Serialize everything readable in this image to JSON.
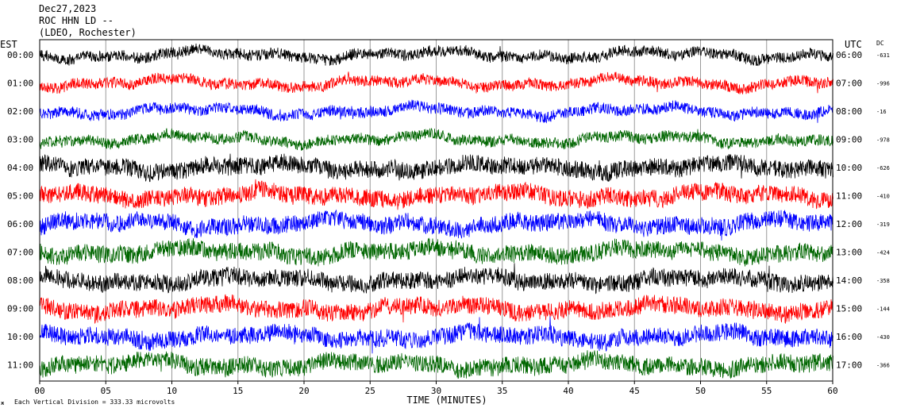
{
  "header": {
    "date": "Dec27,2023",
    "station": "ROC HHN LD --",
    "network": "(LDEO, Rochester)"
  },
  "left_zone_label": "EST",
  "right_zone_label": "UTC",
  "dc_label": "DC",
  "footer_note": "Each Vertical Division =  333.33 microvolts",
  "footer_mark": "ж",
  "chart_data": {
    "type": "line",
    "title": "",
    "xlabel": "TIME (MINUTES)",
    "ylabel": "",
    "xlim": [
      0,
      60
    ],
    "x_ticks": [
      "00",
      "05",
      "10",
      "15",
      "20",
      "25",
      "30",
      "35",
      "40",
      "45",
      "50",
      "55",
      "60"
    ],
    "x_tick_values": [
      0,
      5,
      10,
      15,
      20,
      25,
      30,
      35,
      40,
      45,
      50,
      55,
      60
    ],
    "grid": true,
    "trace_colors": [
      "#000000",
      "#ff0000",
      "#0000ff",
      "#006600"
    ],
    "rows": [
      {
        "est": "00:00",
        "utc": "06:00",
        "dc": "-631",
        "color": "#000000"
      },
      {
        "est": "01:00",
        "utc": "07:00",
        "dc": "-996",
        "color": "#ff0000"
      },
      {
        "est": "02:00",
        "utc": "08:00",
        "dc": "-16",
        "color": "#0000ff"
      },
      {
        "est": "03:00",
        "utc": "09:00",
        "dc": "-978",
        "color": "#006600"
      },
      {
        "est": "04:00",
        "utc": "10:00",
        "dc": "-626",
        "color": "#000000"
      },
      {
        "est": "05:00",
        "utc": "11:00",
        "dc": "-410",
        "color": "#ff0000"
      },
      {
        "est": "06:00",
        "utc": "12:00",
        "dc": "-319",
        "color": "#0000ff"
      },
      {
        "est": "07:00",
        "utc": "13:00",
        "dc": "-424",
        "color": "#006600"
      },
      {
        "est": "08:00",
        "utc": "14:00",
        "dc": "-358",
        "color": "#000000"
      },
      {
        "est": "09:00",
        "utc": "15:00",
        "dc": "-144",
        "color": "#ff0000"
      },
      {
        "est": "10:00",
        "utc": "16:00",
        "dc": "-430",
        "color": "#0000ff"
      },
      {
        "est": "11:00",
        "utc": "17:00",
        "dc": "-366",
        "color": "#006600"
      }
    ]
  }
}
